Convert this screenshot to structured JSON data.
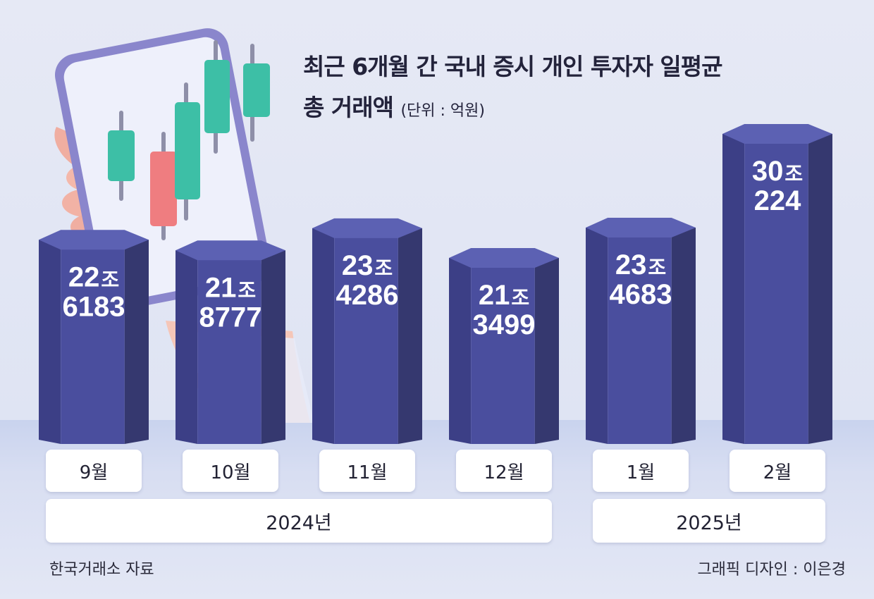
{
  "title": {
    "line1": "최근 6개월 간 국내 증시 개인 투자자 일평균",
    "line2": "총 거래액",
    "unit": "(단위 : 억원)"
  },
  "chart_data": {
    "type": "bar",
    "title": "최근 6개월 간 국내 증시 개인 투자자 일평균 총 거래액",
    "unit": "억원",
    "categories": [
      "9월",
      "10월",
      "11월",
      "12월",
      "1월",
      "2월"
    ],
    "values": [
      226183,
      218777,
      234286,
      213499,
      234683,
      300224
    ],
    "value_labels": [
      [
        "22",
        "조",
        "6183"
      ],
      [
        "21",
        "조",
        "8777"
      ],
      [
        "23",
        "조",
        "4286"
      ],
      [
        "21",
        "조",
        "3499"
      ],
      [
        "23",
        "조",
        "4683"
      ],
      [
        "30",
        "조",
        "224"
      ]
    ],
    "groups": [
      {
        "label": "2024년",
        "categories": [
          "9월",
          "10월",
          "11월",
          "12월"
        ]
      },
      {
        "label": "2025년",
        "categories": [
          "1월",
          "2월"
        ]
      }
    ]
  },
  "footer": {
    "source": "한국거래소 자료",
    "credit": "그래픽 디자인 : 이은경"
  },
  "colors": {
    "bar_front": "#4a4e9e",
    "bar_right": "#35386f",
    "bar_left": "#3c3f86",
    "bar_top": "#5c61b3",
    "candle_up": "#3dbfa6",
    "candle_down": "#ef7d80",
    "phone_frame": "#8a86cc"
  }
}
